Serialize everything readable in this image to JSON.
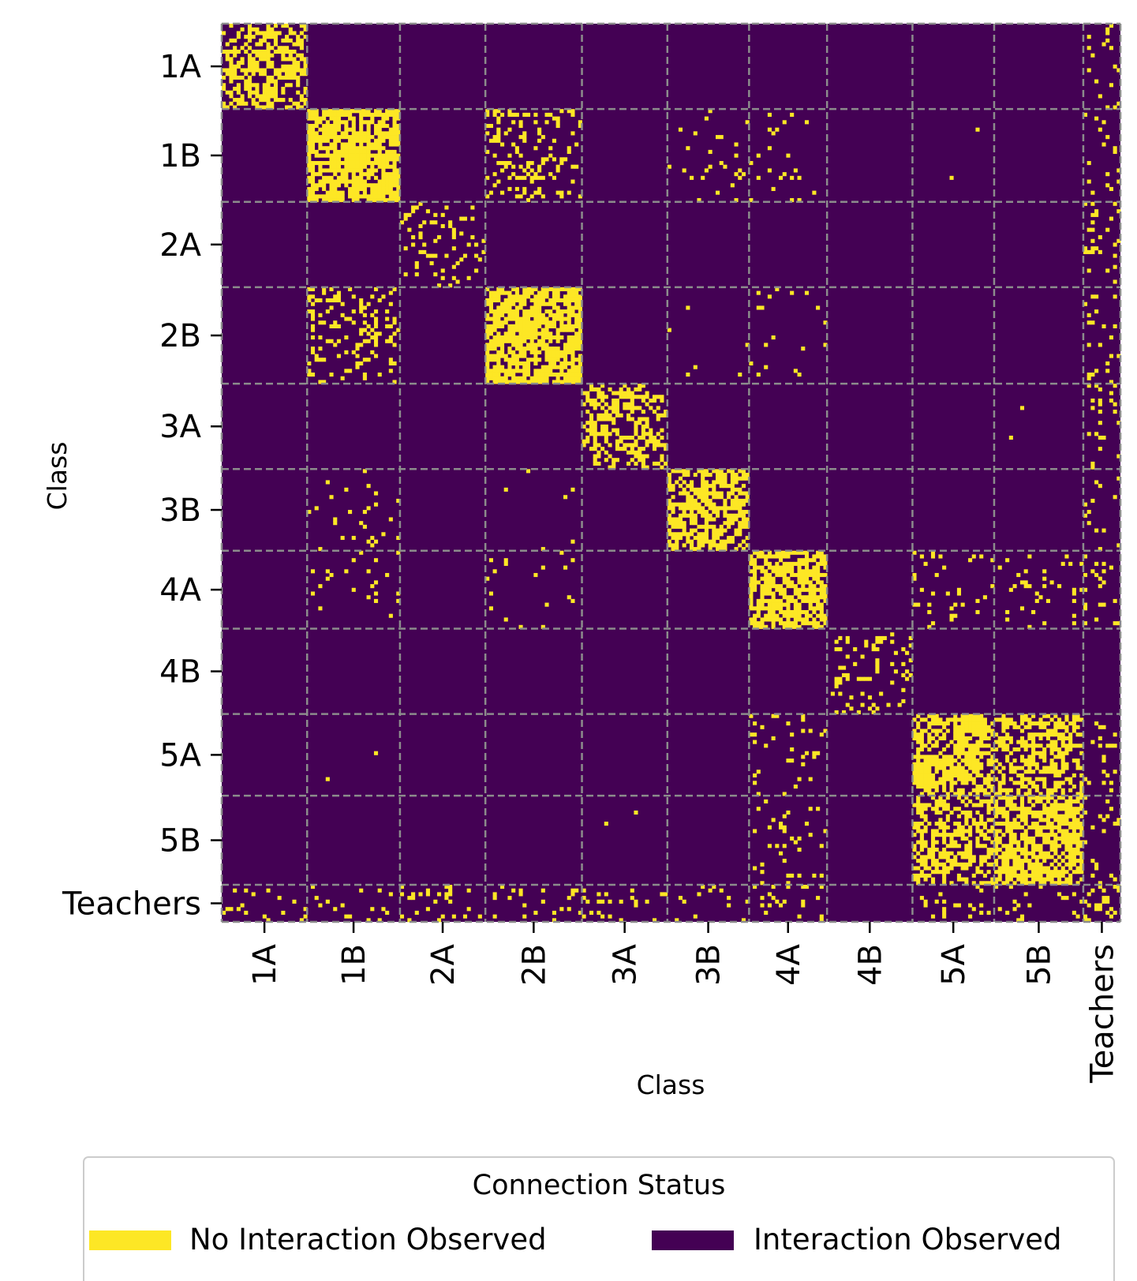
{
  "chart_data": {
    "type": "heatmap",
    "title": "",
    "xlabel": "Class",
    "ylabel": "Class",
    "categories": [
      "1A",
      "1B",
      "2A",
      "2B",
      "3A",
      "3B",
      "4A",
      "4B",
      "5A",
      "5B",
      "Teachers"
    ],
    "group_sizes": [
      23,
      25,
      23,
      26,
      23,
      22,
      21,
      23,
      22,
      24,
      10
    ],
    "grid": "dashed lines at class boundaries",
    "colors": {
      "no_interaction": "#fde725",
      "interaction": "#440154",
      "grid": "#8c8c8c"
    },
    "density_matrix": [
      [
        0.55,
        0.0,
        0.0,
        0.0,
        0.0,
        0.0,
        0.0,
        0.0,
        0.0,
        0.0,
        0.05
      ],
      [
        0.0,
        0.78,
        0.0,
        0.2,
        0.0,
        0.05,
        0.05,
        0.0,
        0.002,
        0.002,
        0.1
      ],
      [
        0.0,
        0.0,
        0.15,
        0.0,
        0.0,
        0.0,
        0.0,
        0.0,
        0.0,
        0.0,
        0.08
      ],
      [
        0.0,
        0.2,
        0.0,
        0.72,
        0.0,
        0.01,
        0.05,
        0.0,
        0.0,
        0.0,
        0.08
      ],
      [
        0.0,
        0.0,
        0.0,
        0.0,
        0.45,
        0.0,
        0.0,
        0.0,
        0.0,
        0.002,
        0.08
      ],
      [
        0.0,
        0.05,
        0.0,
        0.01,
        0.0,
        0.62,
        0.0,
        0.0,
        0.0,
        0.0,
        0.08
      ],
      [
        0.0,
        0.05,
        0.0,
        0.05,
        0.0,
        0.0,
        0.72,
        0.0,
        0.08,
        0.08,
        0.1
      ],
      [
        0.0,
        0.0,
        0.0,
        0.0,
        0.0,
        0.0,
        0.0,
        0.15,
        0.0,
        0.0,
        0.0
      ],
      [
        0.0,
        0.002,
        0.0,
        0.0,
        0.0,
        0.0,
        0.15,
        0.0,
        0.62,
        0.55,
        0.1
      ],
      [
        0.0,
        0.0,
        0.0,
        0.0,
        0.002,
        0.0,
        0.15,
        0.0,
        0.55,
        0.72,
        0.12
      ],
      [
        0.06,
        0.06,
        0.05,
        0.05,
        0.04,
        0.04,
        0.05,
        0.0,
        0.08,
        0.1,
        0.15
      ]
    ],
    "legend": {
      "title": "Connection Status",
      "placement": "bottom",
      "entries": [
        {
          "label": "No Interaction Observed",
          "color": "#fde725"
        },
        {
          "label": "Interaction Observed",
          "color": "#440154"
        }
      ]
    }
  }
}
